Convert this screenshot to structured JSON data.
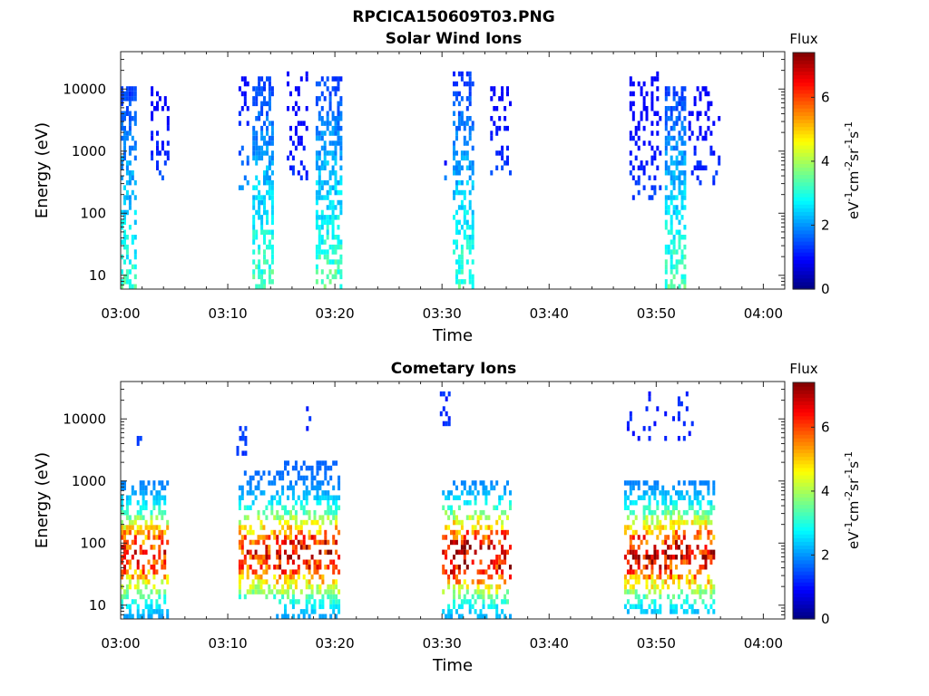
{
  "figure_title": "RPCICA150609T03.PNG",
  "colorbar": {
    "title": "Flux",
    "label_base": [
      "eV",
      "cm",
      "sr",
      "s"
    ],
    "label_exp": [
      "-1",
      "-2",
      "-1",
      "-1"
    ],
    "range": [
      0,
      7.4
    ],
    "ticks": [
      0,
      2,
      4,
      6
    ],
    "colormap": "jet"
  },
  "chart_data": [
    {
      "type": "heatmap",
      "title": "Solar Wind Ions",
      "xlabel": "Time",
      "ylabel": "Energy (eV)",
      "x_ticks": [
        "03:00",
        "03:10",
        "03:20",
        "03:30",
        "03:40",
        "03:50",
        "04:00"
      ],
      "x_range_minutes": [
        0,
        62
      ],
      "y_scale": "log",
      "y_ticks": [
        10,
        100,
        1000,
        10000
      ],
      "y_range": [
        6,
        40000
      ],
      "bursts": [
        {
          "t": [
            0.0,
            1.5
          ],
          "e": [
            6,
            11000
          ],
          "peak_flux": 3.2,
          "density": 0.55
        },
        {
          "t": [
            2.8,
            4.4
          ],
          "e": [
            400,
            11000
          ],
          "peak_flux": 1.4,
          "density": 0.3
        },
        {
          "t": [
            11.0,
            11.8
          ],
          "e": [
            180,
            14000
          ],
          "peak_flux": 2.0,
          "density": 0.25
        },
        {
          "t": [
            12.3,
            14.2
          ],
          "e": [
            6,
            15000
          ],
          "peak_flux": 3.3,
          "density": 0.55
        },
        {
          "t": [
            15.5,
            17.5
          ],
          "e": [
            400,
            18000
          ],
          "peak_flux": 1.2,
          "density": 0.25
        },
        {
          "t": [
            18.2,
            20.6
          ],
          "e": [
            6,
            14000
          ],
          "peak_flux": 3.4,
          "density": 0.55
        },
        {
          "t": [
            30.2,
            30.4
          ],
          "e": [
            400,
            700
          ],
          "peak_flux": 1.5,
          "density": 0.5
        },
        {
          "t": [
            31.0,
            33.0
          ],
          "e": [
            6,
            18000
          ],
          "peak_flux": 3.2,
          "density": 0.5
        },
        {
          "t": [
            34.5,
            36.3
          ],
          "e": [
            450,
            11000
          ],
          "peak_flux": 1.4,
          "density": 0.3
        },
        {
          "t": [
            47.5,
            50.5
          ],
          "e": [
            150,
            16000
          ],
          "peak_flux": 1.4,
          "density": 0.25
        },
        {
          "t": [
            50.8,
            52.7
          ],
          "e": [
            6,
            11000
          ],
          "peak_flux": 3.3,
          "density": 0.55
        },
        {
          "t": [
            53.0,
            55.8
          ],
          "e": [
            300,
            11000
          ],
          "peak_flux": 1.3,
          "density": 0.25
        }
      ]
    },
    {
      "type": "heatmap",
      "title": "Cometary Ions",
      "xlabel": "Time",
      "ylabel": "Energy (eV)",
      "x_ticks": [
        "03:00",
        "03:10",
        "03:20",
        "03:30",
        "03:40",
        "03:50",
        "04:00"
      ],
      "x_range_minutes": [
        0,
        62
      ],
      "y_scale": "log",
      "y_ticks": [
        10,
        100,
        1000,
        10000
      ],
      "y_range": [
        6,
        40000
      ],
      "bursts": [
        {
          "t": [
            0.0,
            4.5
          ],
          "e": [
            6,
            900
          ],
          "peak_flux": 5.2,
          "density": 0.5
        },
        {
          "t": [
            1.5,
            1.8
          ],
          "e": [
            4000,
            5000
          ],
          "peak_flux": 1.5,
          "density": 0.6
        },
        {
          "t": [
            10.8,
            11.6
          ],
          "e": [
            3000,
            7000
          ],
          "peak_flux": 1.4,
          "density": 0.6
        },
        {
          "t": [
            11.0,
            14.5
          ],
          "e": [
            15,
            1300
          ],
          "peak_flux": 5.2,
          "density": 0.45
        },
        {
          "t": [
            14.5,
            20.5
          ],
          "e": [
            6,
            1800
          ],
          "peak_flux": 5.6,
          "density": 0.45
        },
        {
          "t": [
            17.3,
            17.7
          ],
          "e": [
            7000,
            30000
          ],
          "peak_flux": 1.3,
          "density": 0.4
        },
        {
          "t": [
            29.8,
            30.6
          ],
          "e": [
            9000,
            25000
          ],
          "peak_flux": 1.3,
          "density": 0.35
        },
        {
          "t": [
            30.0,
            36.5
          ],
          "e": [
            6,
            900
          ],
          "peak_flux": 6.0,
          "density": 0.4
        },
        {
          "t": [
            46.5,
            53.5
          ],
          "e": [
            5000,
            25000
          ],
          "peak_flux": 1.2,
          "density": 0.12
        },
        {
          "t": [
            47.0,
            55.5
          ],
          "e": [
            8,
            1000
          ],
          "peak_flux": 5.6,
          "density": 0.45
        }
      ]
    }
  ]
}
